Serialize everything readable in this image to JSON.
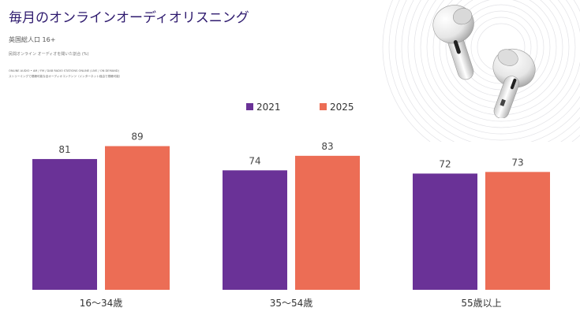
{
  "header": {
    "title": "毎月のオンラインオーディオリスニング",
    "subtitle": "英国総人口 16+",
    "note": "民間オンライン オーディオを聞いた割合 (%)",
    "source_line1": "ONLINE AUDIO • AM / FM / DAB RADIO STATIONS ONLINE (LIVE / ON DEMAND)",
    "source_line2": "ストリーミングで視聴可能な全オーディオコンテンツ（インターネット経由で視聴可能）"
  },
  "colors": {
    "series_2021": "#6a3297",
    "series_2025": "#ec6d55",
    "title": "#2e1a6e"
  },
  "chart_data": {
    "type": "bar",
    "categories": [
      "16〜34歳",
      "35〜54歳",
      "55歳以上"
    ],
    "series": [
      {
        "name": "2021",
        "values": [
          81,
          74,
          72
        ],
        "color": "#6a3297"
      },
      {
        "name": "2025",
        "values": [
          89,
          83,
          73
        ],
        "color": "#ec6d55"
      }
    ],
    "ylim": [
      0,
      100
    ],
    "legend_position": "top-center",
    "grid": false,
    "xlabel": "",
    "ylabel": ""
  }
}
